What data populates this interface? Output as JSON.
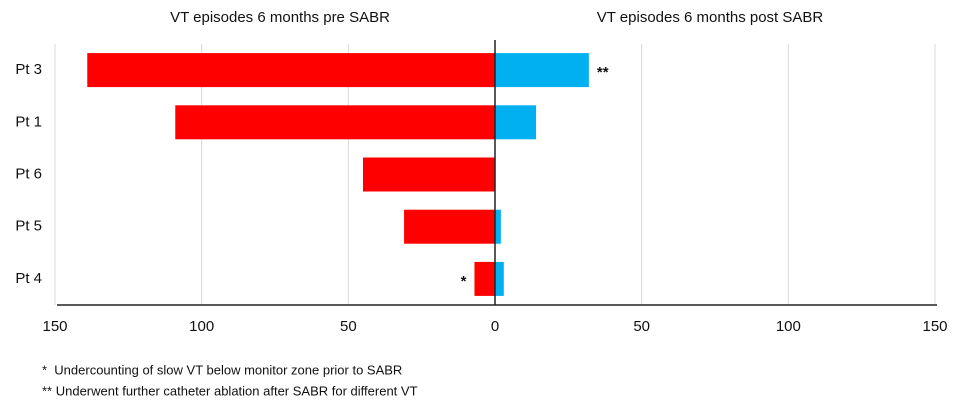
{
  "chart_data": {
    "type": "butterfly-bar",
    "categories": [
      "Pt 3",
      "Pt 1",
      "Pt 6",
      "Pt 5",
      "Pt 4"
    ],
    "series": [
      {
        "name": "VT episodes 6 months pre SABR",
        "color": "#ff0000",
        "values": [
          139,
          109,
          45,
          31,
          7
        ]
      },
      {
        "name": "VT episodes 6 months post SABR",
        "color": "#00b0f0",
        "values": [
          32,
          14,
          0,
          2,
          3
        ]
      }
    ],
    "xlim": [
      0,
      150
    ],
    "xticks": [
      0,
      50,
      100,
      150
    ],
    "grid": true,
    "annotations": [
      {
        "text": "**",
        "category": "Pt 3",
        "series": "VT episodes 6 months post SABR"
      },
      {
        "text": "*",
        "category": "Pt 4",
        "series": "VT episodes 6 months pre SABR"
      }
    ],
    "footnotes": [
      "*  Undercounting of slow VT below monitor zone prior to SABR",
      "** Underwent further catheter ablation after SABR for different VT"
    ]
  }
}
